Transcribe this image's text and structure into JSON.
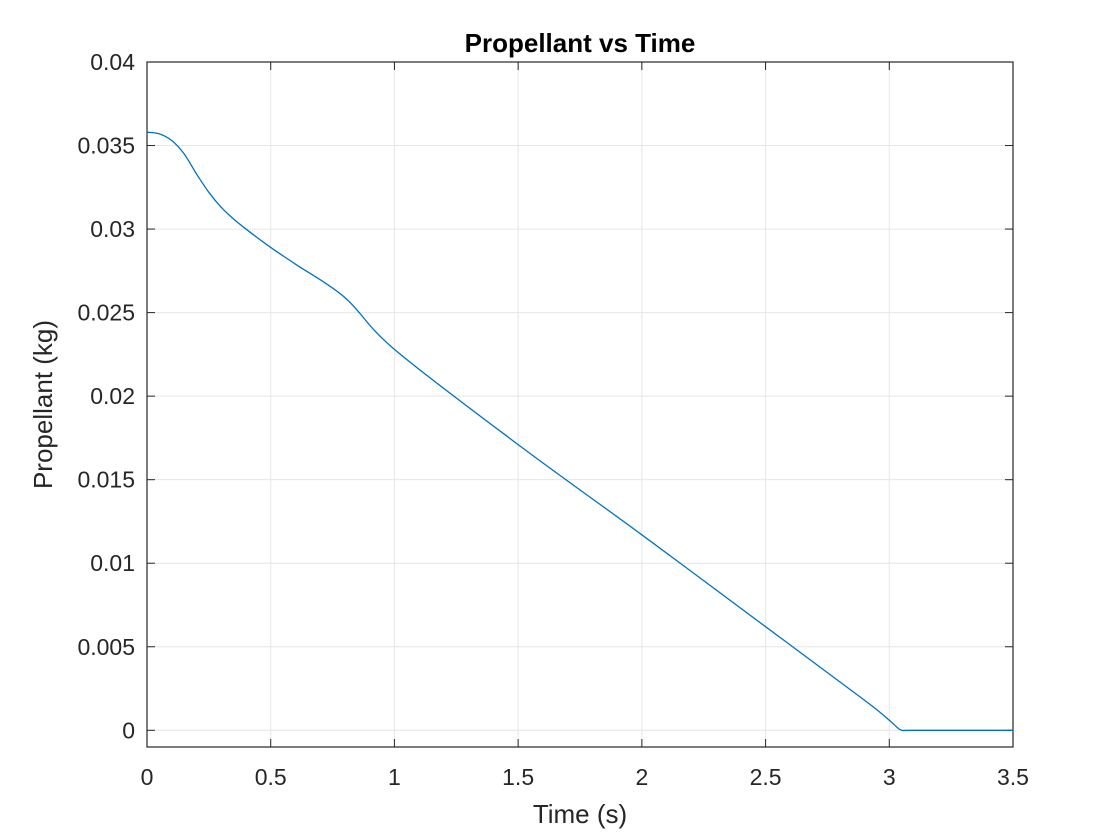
{
  "chart_data": {
    "type": "line",
    "title": "Propellant vs Time",
    "xlabel": "Time (s)",
    "ylabel": "Propellant (kg)",
    "xlim": [
      0,
      3.5
    ],
    "ylim": [
      -0.001,
      0.04
    ],
    "xticks": [
      0,
      0.5,
      1,
      1.5,
      2,
      2.5,
      3,
      3.5
    ],
    "xtick_labels": [
      "0",
      "0.5",
      "1",
      "1.5",
      "2",
      "2.5",
      "3",
      "3.5"
    ],
    "yticks": [
      0,
      0.005,
      0.01,
      0.015,
      0.02,
      0.025,
      0.03,
      0.035,
      0.04
    ],
    "ytick_labels": [
      "0",
      "0.005",
      "0.01",
      "0.015",
      "0.02",
      "0.025",
      "0.03",
      "0.035",
      "0.04"
    ],
    "grid": true,
    "colors": {
      "line": "#0072BD",
      "grid": "#e6e6e6",
      "axis": "#262626"
    },
    "series": [
      {
        "x": [
          0,
          0.05,
          0.1,
          0.15,
          0.2,
          0.25,
          0.3,
          0.35,
          0.4,
          0.5,
          0.6,
          0.8,
          1.0,
          1.5,
          2.0,
          2.5,
          2.9,
          3.0,
          3.03,
          3.05,
          3.1,
          3.5
        ],
        "y": [
          0.0358,
          0.0357,
          0.0353,
          0.0345,
          0.0333,
          0.0322,
          0.0313,
          0.0306,
          0.03,
          0.0289,
          0.0279,
          0.0259,
          0.0228,
          0.0171,
          0.0117,
          0.0062,
          0.0018,
          0.0006,
          0.0002,
          0.0,
          0.0,
          0.0
        ]
      }
    ]
  }
}
